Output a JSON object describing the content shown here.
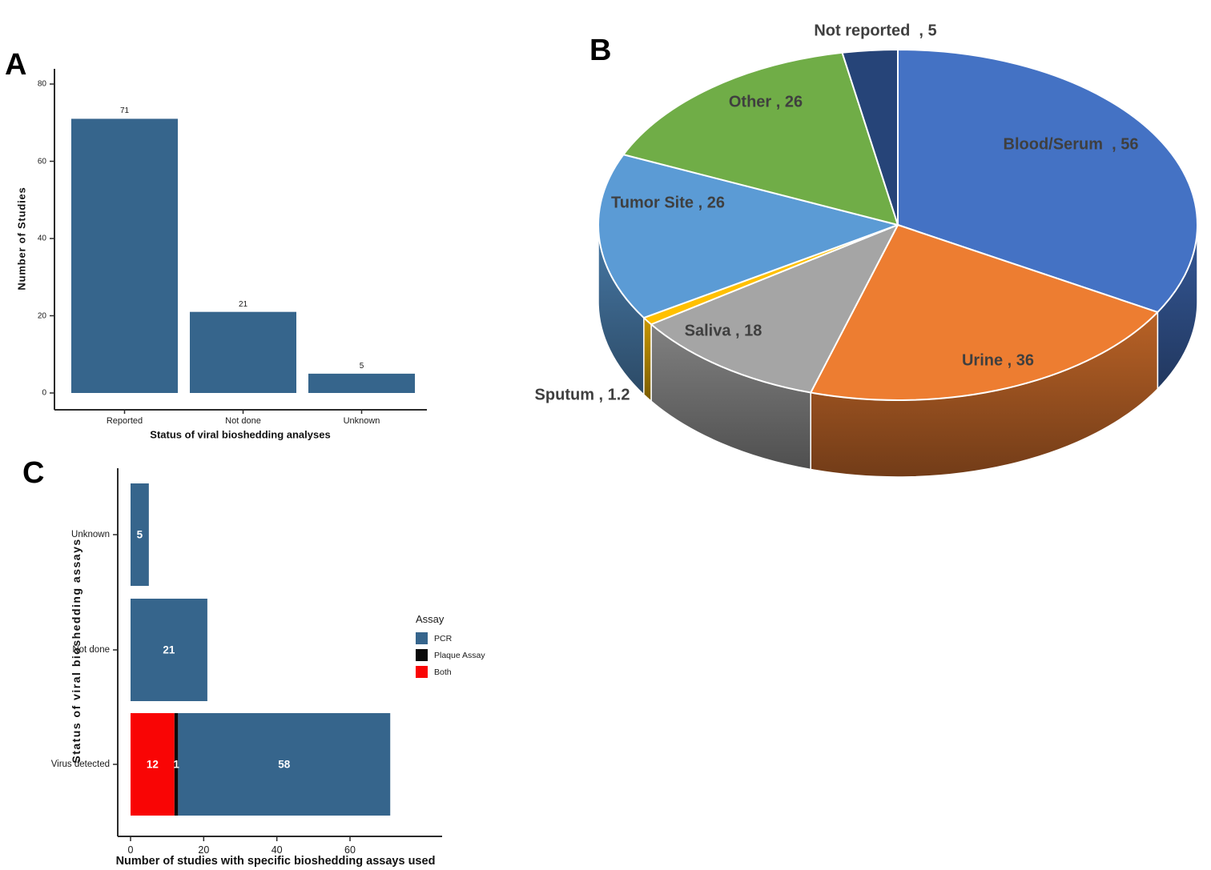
{
  "figure": {
    "panels": [
      {
        "letter": "A"
      },
      {
        "letter": "B"
      },
      {
        "letter": "C"
      }
    ]
  },
  "chart_data": [
    {
      "id": "A",
      "type": "bar",
      "orientation": "vertical",
      "categories": [
        "Reported",
        "Not done",
        "Unknown"
      ],
      "values": [
        71,
        21,
        5
      ],
      "xlabel": "Status of viral bioshedding analyses",
      "ylabel": "Number of Studies",
      "ylim": [
        0,
        80
      ],
      "yticks": [
        0,
        20,
        40,
        60,
        80
      ],
      "bar_color": "#36658C",
      "grid": false,
      "value_labels_shown": true
    },
    {
      "id": "B",
      "type": "pie",
      "style": "3d",
      "start_angle_deg": 0,
      "direction": "clockwise",
      "label_color": "#3F3F3F",
      "slices": [
        {
          "label": "Blood/Serum",
          "value": 56,
          "display": "Blood/Serum  , 56",
          "color": "#4472C4"
        },
        {
          "label": "Urine",
          "value": 36,
          "display": "Urine , 36",
          "color": "#ED7D31"
        },
        {
          "label": "Saliva",
          "value": 18,
          "display": "Saliva , 18",
          "color": "#A5A5A5"
        },
        {
          "label": "Sputum",
          "value": 1.2,
          "display": "Sputum , 1.2",
          "color": "#FFC000"
        },
        {
          "label": "Tumor Site",
          "value": 26,
          "display": "Tumor Site , 26",
          "color": "#5B9BD5"
        },
        {
          "label": "Other",
          "value": 26,
          "display": "Other , 26",
          "color": "#70AD47"
        },
        {
          "label": "Not reported",
          "value": 5,
          "display": "Not reported  , 5",
          "color": "#264478"
        }
      ]
    },
    {
      "id": "C",
      "type": "bar",
      "orientation": "horizontal",
      "stacked": true,
      "categories": [
        "Unknown",
        "Not done",
        "Virus detected"
      ],
      "series": [
        {
          "name": "Both",
          "color": "#F90505",
          "values": [
            0,
            0,
            12
          ]
        },
        {
          "name": "Plaque Assay",
          "color": "#0A0A0A",
          "values": [
            0,
            0,
            1
          ]
        },
        {
          "name": "PCR",
          "color": "#36658C",
          "values": [
            5,
            21,
            58
          ]
        }
      ],
      "xlabel": "Number of studies with specific bioshedding assays used",
      "ylabel": "Status of viral bioshedding assays",
      "xlim": [
        0,
        72
      ],
      "xticks": [
        0,
        20,
        40,
        60
      ],
      "legend": {
        "title": "Assay",
        "position": "right",
        "items": [
          {
            "label": "PCR",
            "color": "#36658C"
          },
          {
            "label": "Plaque Assay",
            "color": "#0A0A0A"
          },
          {
            "label": "Both",
            "color": "#F90505"
          }
        ]
      }
    }
  ]
}
